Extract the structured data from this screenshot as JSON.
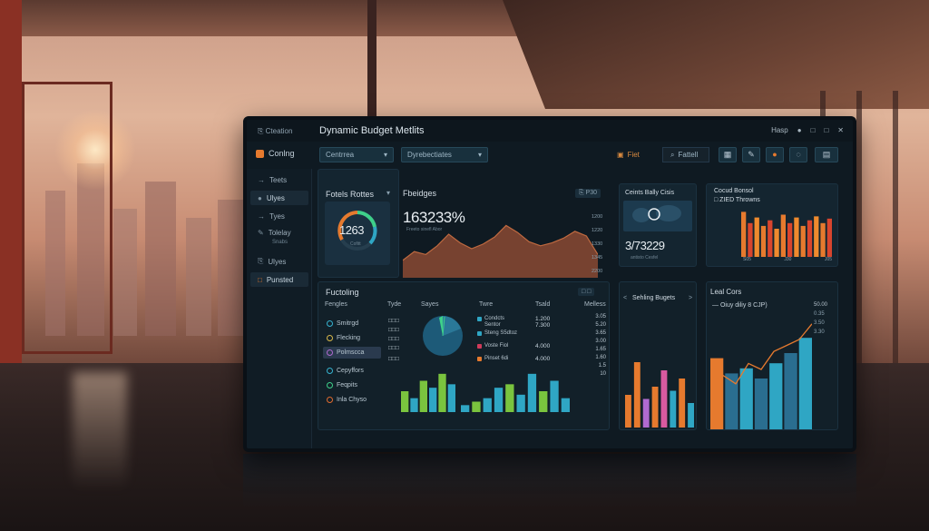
{
  "window": {
    "app_name": "⎘ Cteation",
    "title": "Dynamic Budget Metlits",
    "controls": [
      "Hasp",
      "●",
      "□",
      "□",
      "✕"
    ]
  },
  "toolbar": {
    "brand_label": "Conlng",
    "select_1": "Centrrea",
    "select_2": "Dyrebectiates",
    "filter_label": "Fiet",
    "search_label": "Fattell"
  },
  "sidebar": {
    "items": [
      {
        "icon": "→",
        "label": "Teets"
      },
      {
        "icon": "●",
        "label": "Ulyes"
      },
      {
        "icon": "→",
        "label": "Tyes"
      },
      {
        "icon": "✎",
        "label": "Tolelay",
        "sub": "Snabs"
      },
      {
        "icon": "⎘",
        "label": "Ulyes"
      },
      {
        "icon": "□",
        "label": "Punsted"
      }
    ]
  },
  "panel_forecast": {
    "title": "Fotels Rottes",
    "gauge_value": "1263",
    "gauge_sub": "Cofitt",
    "chevron": "▾"
  },
  "panel_budgets": {
    "title": "Fbeidges",
    "metric": "163233%",
    "metric_note": "Freeto sinefl Abor",
    "ctrl": "⎘ P30",
    "y_ticks": [
      "1200",
      "1220",
      "1330",
      "1345",
      "2200"
    ]
  },
  "panel_cost": {
    "title": "Ceints Bally Cisis",
    "metric": "3/73229",
    "metric_note": "antisto Cesfel"
  },
  "panel_bar_top": {
    "title": "Cocud Bonsol",
    "subtitle": "□ ZIED Throwns",
    "x_ticks": [
      "S05",
      "J30",
      "J05"
    ]
  },
  "panel_funding": {
    "title": "Fuctoling",
    "ctrl": "□ □",
    "columns": [
      "Fengles",
      "Tyde",
      "Sayes",
      "Twre",
      "Tsald",
      "Melless"
    ],
    "rows": [
      {
        "label": "Smitrgd",
        "col2": "□□□",
        "color": "#36b3d0"
      },
      {
        "label": "Flecking",
        "col2": "□□□",
        "color": "#d8b84a"
      },
      {
        "label": "Polmscca",
        "col2": "□□□",
        "color": "#b06ad0"
      },
      {
        "label": "Cepyffors",
        "col2": "□□□",
        "color": "#36b3d0"
      },
      {
        "label": "Feqpits",
        "col2": "□□□",
        "color": "#3ed08a"
      },
      {
        "label": "Inla Chyso",
        "col2": "□□□",
        "color": "#e06a2e"
      }
    ],
    "legend": [
      {
        "label": "Condcts",
        "color": "#2fa6c4"
      },
      {
        "label": "Sentor",
        "color": "#2fa6c4"
      },
      {
        "label": "Steng S5dtoz",
        "color": "#2fa6c4"
      },
      {
        "label": "Voste Fiol",
        "color": "#d03a5a"
      },
      {
        "label": "Pinset 6di",
        "color": "#e67a2e"
      }
    ],
    "legend_values": [
      "1.200",
      "7.300",
      "4.000",
      "4.000"
    ],
    "right_values": [
      "3.05",
      "5.20",
      "3.65",
      "3.00",
      "1.65",
      "1.60",
      "1.5",
      "10"
    ]
  },
  "panel_spending": {
    "title": "Sehling Bugets",
    "arrows": [
      "<",
      ">"
    ]
  },
  "panel_lastcost": {
    "title": "Leal Cors",
    "legend": "— Oiuy diliy 8 CJP)",
    "value_right": "50.00",
    "ticks": [
      "0.35",
      "3.50",
      "3.30"
    ]
  },
  "charts": {
    "area_points": [
      30,
      45,
      40,
      55,
      75,
      60,
      50,
      58,
      70,
      90,
      78,
      62,
      55,
      60,
      68,
      80,
      72,
      40
    ],
    "top_bars_orange": [
      80,
      60,
      70,
      55,
      65,
      50,
      75,
      60,
      70,
      55,
      65,
      72,
      60,
      68
    ],
    "funding_bars_1": [
      30,
      20,
      45,
      35,
      55,
      40
    ],
    "funding_bars_2": [
      10,
      15,
      20,
      35,
      40,
      25,
      55,
      30,
      45,
      20
    ],
    "spending_bars": [
      40,
      80,
      35,
      50,
      70,
      45,
      60,
      30
    ],
    "last_bars": [
      70,
      55,
      60,
      50,
      65,
      75,
      90
    ],
    "last_line": [
      40,
      45,
      38,
      55,
      50,
      65,
      70,
      75,
      88
    ]
  },
  "colors": {
    "accent_orange": "#e67a2e",
    "accent_green": "#3ed08a",
    "accent_blue": "#2fa6c4",
    "panel_bg": "#142530"
  }
}
